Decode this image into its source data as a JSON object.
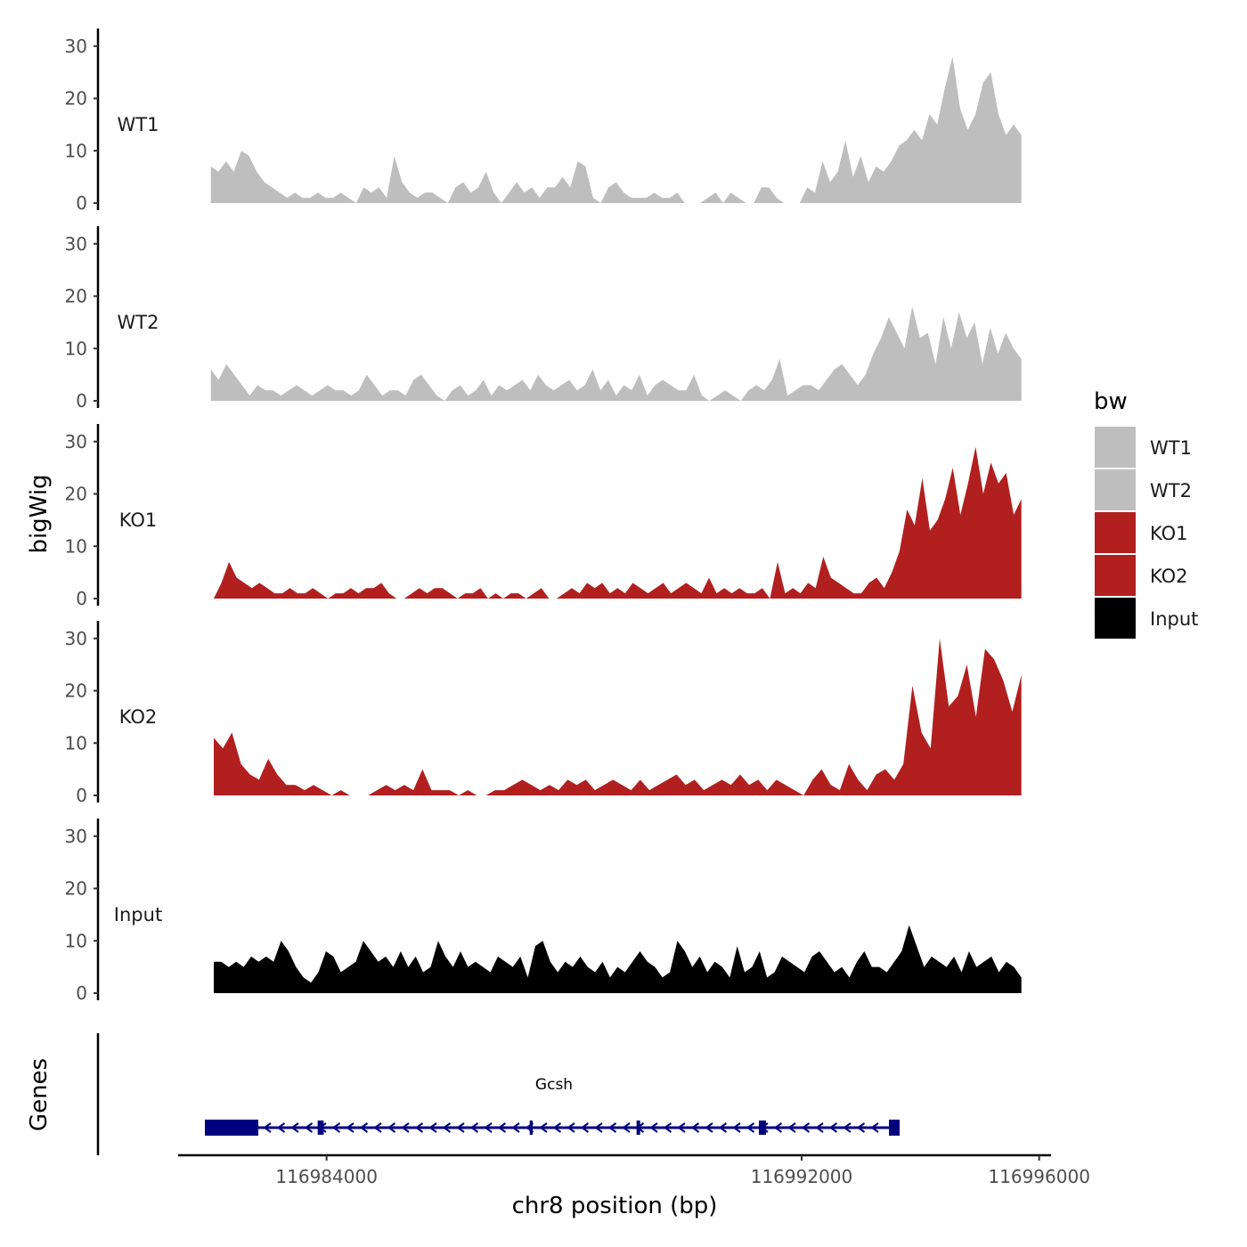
{
  "chart_data": {
    "type": "area",
    "ylabel": "bigWig",
    "xlabel": "chr8 position (bp)",
    "xlim": [
      116981500,
      116996200
    ],
    "x_ticks": [
      {
        "value": 116984000,
        "label": "116984000"
      },
      {
        "value": 116992000,
        "label": "116992000"
      },
      {
        "value": 116996000,
        "label": "116996000"
      }
    ],
    "y_ticks": [
      {
        "value": 0,
        "label": "0"
      },
      {
        "value": 10,
        "label": "10"
      },
      {
        "value": 20,
        "label": "20"
      },
      {
        "value": 30,
        "label": "30"
      }
    ],
    "ylim": [
      0,
      32
    ],
    "series": [
      {
        "name": "WT1",
        "color": "#bebebe",
        "x_start": 116982050,
        "x_end": 116995700,
        "values": [
          7,
          6,
          8,
          6,
          10,
          9,
          6,
          4,
          3,
          2,
          1,
          2,
          1,
          1,
          2,
          1,
          1,
          2,
          1,
          0,
          3,
          2,
          3,
          1,
          9,
          4,
          2,
          1,
          2,
          2,
          1,
          0,
          3,
          4,
          2,
          3,
          6,
          2,
          0,
          2,
          4,
          2,
          3,
          1,
          3,
          3,
          5,
          3,
          8,
          7,
          1,
          0,
          3,
          4,
          2,
          1,
          1,
          1,
          2,
          1,
          1,
          2,
          0,
          0,
          0,
          1,
          2,
          0,
          2,
          1,
          0,
          0,
          3,
          3,
          1,
          0,
          0,
          0,
          3,
          2,
          8,
          4,
          6,
          12,
          5,
          9,
          4,
          7,
          6,
          8,
          11,
          12,
          14,
          12,
          17,
          15,
          22,
          28,
          18,
          14,
          17,
          23,
          25,
          17,
          13,
          15,
          13
        ]
      },
      {
        "name": "WT2",
        "color": "#bebebe",
        "x_start": 116982050,
        "x_end": 116995700,
        "values": [
          6,
          4,
          7,
          5,
          3,
          1,
          3,
          2,
          2,
          1,
          2,
          3,
          2,
          1,
          2,
          3,
          2,
          2,
          1,
          2,
          5,
          3,
          1,
          2,
          2,
          1,
          4,
          5,
          3,
          1,
          0,
          2,
          3,
          1,
          2,
          4,
          1,
          3,
          2,
          3,
          4,
          2,
          5,
          3,
          2,
          3,
          4,
          2,
          3,
          6,
          2,
          4,
          1,
          3,
          2,
          5,
          1,
          3,
          4,
          3,
          2,
          2,
          5,
          1,
          0,
          1,
          2,
          1,
          0,
          2,
          3,
          2,
          4,
          8,
          1,
          2,
          3,
          3,
          2,
          4,
          6,
          7,
          5,
          3,
          5,
          9,
          12,
          16,
          13,
          10,
          18,
          12,
          13,
          7,
          16,
          10,
          17,
          12,
          15,
          7,
          14,
          9,
          13,
          10,
          8
        ]
      },
      {
        "name": "KO1",
        "color": "#b21f1f",
        "x_start": 116982100,
        "x_end": 116995700,
        "values": [
          0,
          3,
          7,
          4,
          3,
          2,
          3,
          2,
          1,
          1,
          2,
          1,
          1,
          2,
          1,
          0,
          1,
          1,
          2,
          1,
          2,
          2,
          3,
          1,
          0,
          0,
          1,
          2,
          1,
          2,
          2,
          1,
          0,
          1,
          1,
          2,
          0,
          1,
          0,
          1,
          1,
          0,
          1,
          2,
          0,
          0,
          1,
          2,
          1,
          3,
          2,
          3,
          1,
          2,
          1,
          3,
          2,
          1,
          2,
          3,
          1,
          2,
          3,
          2,
          1,
          4,
          1,
          2,
          1,
          2,
          1,
          1,
          2,
          0,
          7,
          1,
          2,
          1,
          3,
          2,
          8,
          4,
          3,
          2,
          1,
          1,
          3,
          4,
          2,
          5,
          9,
          17,
          14,
          23,
          13,
          15,
          19,
          25,
          16,
          22,
          29,
          20,
          26,
          22,
          24,
          16,
          19
        ]
      },
      {
        "name": "KO2",
        "color": "#b21f1f",
        "x_start": 116982100,
        "x_end": 116995700,
        "values": [
          11,
          9,
          12,
          6,
          4,
          3,
          7,
          4,
          2,
          2,
          1,
          2,
          1,
          0,
          1,
          0,
          0,
          0,
          1,
          2,
          1,
          2,
          1,
          5,
          1,
          1,
          1,
          0,
          1,
          0,
          0,
          1,
          1,
          2,
          3,
          2,
          1,
          2,
          1,
          3,
          2,
          3,
          1,
          2,
          3,
          2,
          1,
          3,
          1,
          2,
          3,
          4,
          2,
          3,
          1,
          2,
          3,
          2,
          4,
          2,
          3,
          1,
          3,
          2,
          1,
          0,
          3,
          5,
          2,
          1,
          6,
          3,
          1,
          4,
          5,
          3,
          6,
          21,
          12,
          9,
          30,
          17,
          19,
          25,
          15,
          28,
          26,
          22,
          16,
          23
        ]
      },
      {
        "name": "Input",
        "color": "#000000",
        "x_start": 116982100,
        "x_end": 116995700,
        "values": [
          6,
          6,
          5,
          6,
          5,
          7,
          6,
          7,
          6,
          10,
          8,
          5,
          3,
          2,
          4,
          8,
          7,
          4,
          5,
          6,
          10,
          8,
          6,
          7,
          5,
          8,
          5,
          7,
          4,
          5,
          10,
          7,
          5,
          8,
          5,
          6,
          5,
          4,
          7,
          6,
          5,
          7,
          3,
          9,
          10,
          6,
          4,
          6,
          5,
          7,
          5,
          4,
          6,
          3,
          5,
          4,
          6,
          8,
          6,
          5,
          3,
          4,
          10,
          8,
          5,
          7,
          4,
          6,
          5,
          3,
          9,
          4,
          5,
          8,
          3,
          4,
          7,
          6,
          5,
          4,
          7,
          8,
          6,
          4,
          5,
          3,
          6,
          8,
          5,
          5,
          4,
          6,
          8,
          13,
          9,
          5,
          7,
          6,
          5,
          7,
          4,
          8,
          5,
          6,
          7,
          4,
          6,
          5,
          3
        ]
      }
    ],
    "genes": {
      "label": "Gcsh",
      "strand": "-",
      "start": 116981950,
      "end": 116993650,
      "exons": [
        {
          "start": 116981950,
          "end": 116982850
        },
        {
          "start": 116983850,
          "end": 116983950
        },
        {
          "start": 116987420,
          "end": 116987470
        },
        {
          "start": 116989220,
          "end": 116989280
        },
        {
          "start": 116991280,
          "end": 116991400
        },
        {
          "start": 116993470,
          "end": 116993650
        }
      ],
      "color": "#00007f",
      "track_title": "Genes"
    },
    "legend": {
      "title": "bw",
      "entries": [
        {
          "label": "WT1",
          "color": "#bebebe"
        },
        {
          "label": "WT2",
          "color": "#bebebe"
        },
        {
          "label": "KO1",
          "color": "#b21f1f"
        },
        {
          "label": "KO2",
          "color": "#b21f1f"
        },
        {
          "label": "Input",
          "color": "#000000"
        }
      ],
      "position": "right"
    }
  }
}
